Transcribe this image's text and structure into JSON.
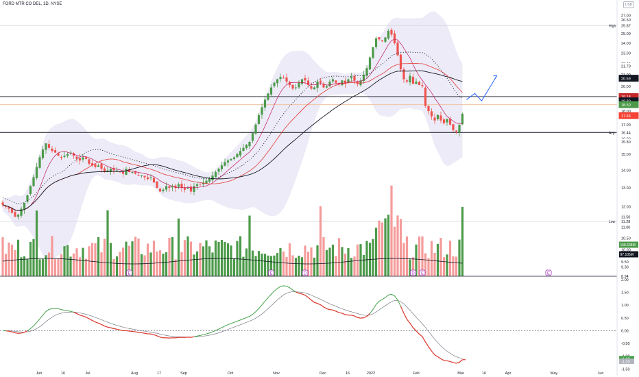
{
  "header": {
    "symbol_line": "FORD MTR CO DEL, 1D, NYSE",
    "currency": "USD"
  },
  "colors": {
    "up": "#4c9a4a",
    "down": "#ef5350",
    "vol_up": "#4c9a4a",
    "vol_down": "#f49b9a",
    "sma_short": "#c2185b",
    "sma_mid": "#e53935",
    "sma_long": "#131722",
    "dots": "#131722",
    "band": "#e9e8f6",
    "projection": "#2962ff",
    "macd": "#43a047",
    "signal": "#e53935"
  },
  "chart_data": [
    {
      "type": "candlestick",
      "title": "",
      "price_axis_ticks": [
        "27.00",
        "26.50",
        "25.87",
        "25.00",
        "24.00",
        "23.00",
        "22.00",
        "21.79",
        "21.00",
        "20.69",
        "20.00",
        "19.14",
        "18.80",
        "18.50",
        "18.00",
        "17.66",
        "17.00",
        "16.44",
        "16.00",
        "15.80",
        "15.00",
        "14.00",
        "13.00",
        "12.00",
        "11.50",
        "11.28",
        "11.00",
        "10.50",
        "10.00",
        "9.50",
        "9.30",
        "8.94"
      ],
      "price_scale": "log",
      "ylim": [
        8.94,
        28.0
      ],
      "x_tick_labels": [
        "Jun",
        "16",
        "Jul",
        "Aug",
        "17",
        "Sep",
        "Oct",
        "Nov",
        "Dec",
        "16",
        "2022",
        "Feb",
        "Mar",
        "16",
        "Apr",
        "May",
        "Jun"
      ],
      "levels": [
        {
          "name": "High",
          "value": 25.87
        },
        {
          "name": "Low",
          "value": 11.28
        },
        {
          "name": "Avg",
          "value": 16.44
        },
        {
          "name": "",
          "value": 19.14
        },
        {
          "name": "",
          "value": 18.5
        }
      ],
      "price_labels": [
        {
          "text": "High",
          "value": "25.87"
        },
        {
          "text": "",
          "value": "21.79"
        },
        {
          "text": "",
          "value": "20.69"
        },
        {
          "text": "",
          "value": "19.14"
        },
        {
          "text": "",
          "value": "18.80"
        },
        {
          "text": "",
          "value": "18.50"
        },
        {
          "text": "",
          "value": "17.66"
        },
        {
          "text": "Avg",
          "value": "16.44"
        },
        {
          "text": "",
          "value": "15.80"
        },
        {
          "text": "Low",
          "value": "11.28"
        }
      ],
      "closes": [
        12.1,
        12.0,
        11.9,
        11.7,
        11.5,
        11.6,
        11.9,
        12.2,
        12.6,
        13.1,
        13.6,
        14.2,
        14.8,
        15.3,
        15.7,
        15.4,
        15.2,
        15.1,
        14.9,
        14.8,
        14.9,
        15.0,
        15.1,
        14.9,
        14.7,
        14.6,
        14.8,
        14.7,
        14.4,
        14.3,
        14.2,
        14.3,
        14.1,
        13.9,
        14.0,
        14.1,
        14.0,
        14.0,
        13.9,
        13.8,
        14.1,
        13.9,
        13.9,
        13.8,
        13.7,
        13.7,
        13.6,
        13.5,
        13.6,
        13.3,
        13.0,
        12.8,
        12.9,
        13.1,
        13.0,
        13.1,
        13.0,
        13.2,
        13.0,
        12.9,
        13.0,
        12.8,
        13.1,
        13.2,
        13.2,
        13.3,
        13.4,
        13.5,
        13.7,
        13.9,
        14.1,
        14.3,
        14.5,
        14.6,
        14.7,
        14.8,
        15.0,
        15.2,
        15.4,
        15.6,
        15.8,
        16.4,
        17.0,
        17.7,
        18.3,
        18.9,
        19.4,
        19.9,
        20.3,
        20.6,
        20.8,
        20.7,
        20.4,
        20.1,
        19.8,
        19.9,
        20.3,
        20.6,
        20.5,
        20.1,
        19.8,
        19.9,
        20.4,
        20.3,
        19.9,
        20.0,
        20.4,
        20.6,
        20.3,
        20.2,
        20.5,
        20.2,
        20.6,
        20.8,
        20.5,
        20.2,
        20.5,
        21.0,
        21.6,
        22.6,
        23.6,
        24.5,
        24.4,
        24.2,
        24.6,
        25.3,
        24.9,
        24.0,
        22.8,
        21.5,
        20.6,
        20.4,
        20.9,
        20.2,
        20.4,
        20.1,
        20.0,
        18.4,
        18.0,
        17.6,
        17.3,
        17.7,
        17.3,
        17.1,
        17.4,
        17.0,
        16.6,
        16.5,
        17.0,
        17.8
      ],
      "volume_axis_ticks": [
        "158.638M",
        "97.105M"
      ],
      "earnings_markers": [
        "E",
        "E",
        "D",
        "D",
        "E",
        "E"
      ],
      "macd_axis_ticks": [
        "2.00",
        "1.50",
        "1.00",
        "0.50",
        "0.00",
        "-0.50",
        "-1.00",
        "-1.10",
        "-1.20",
        "-1.50"
      ]
    }
  ]
}
